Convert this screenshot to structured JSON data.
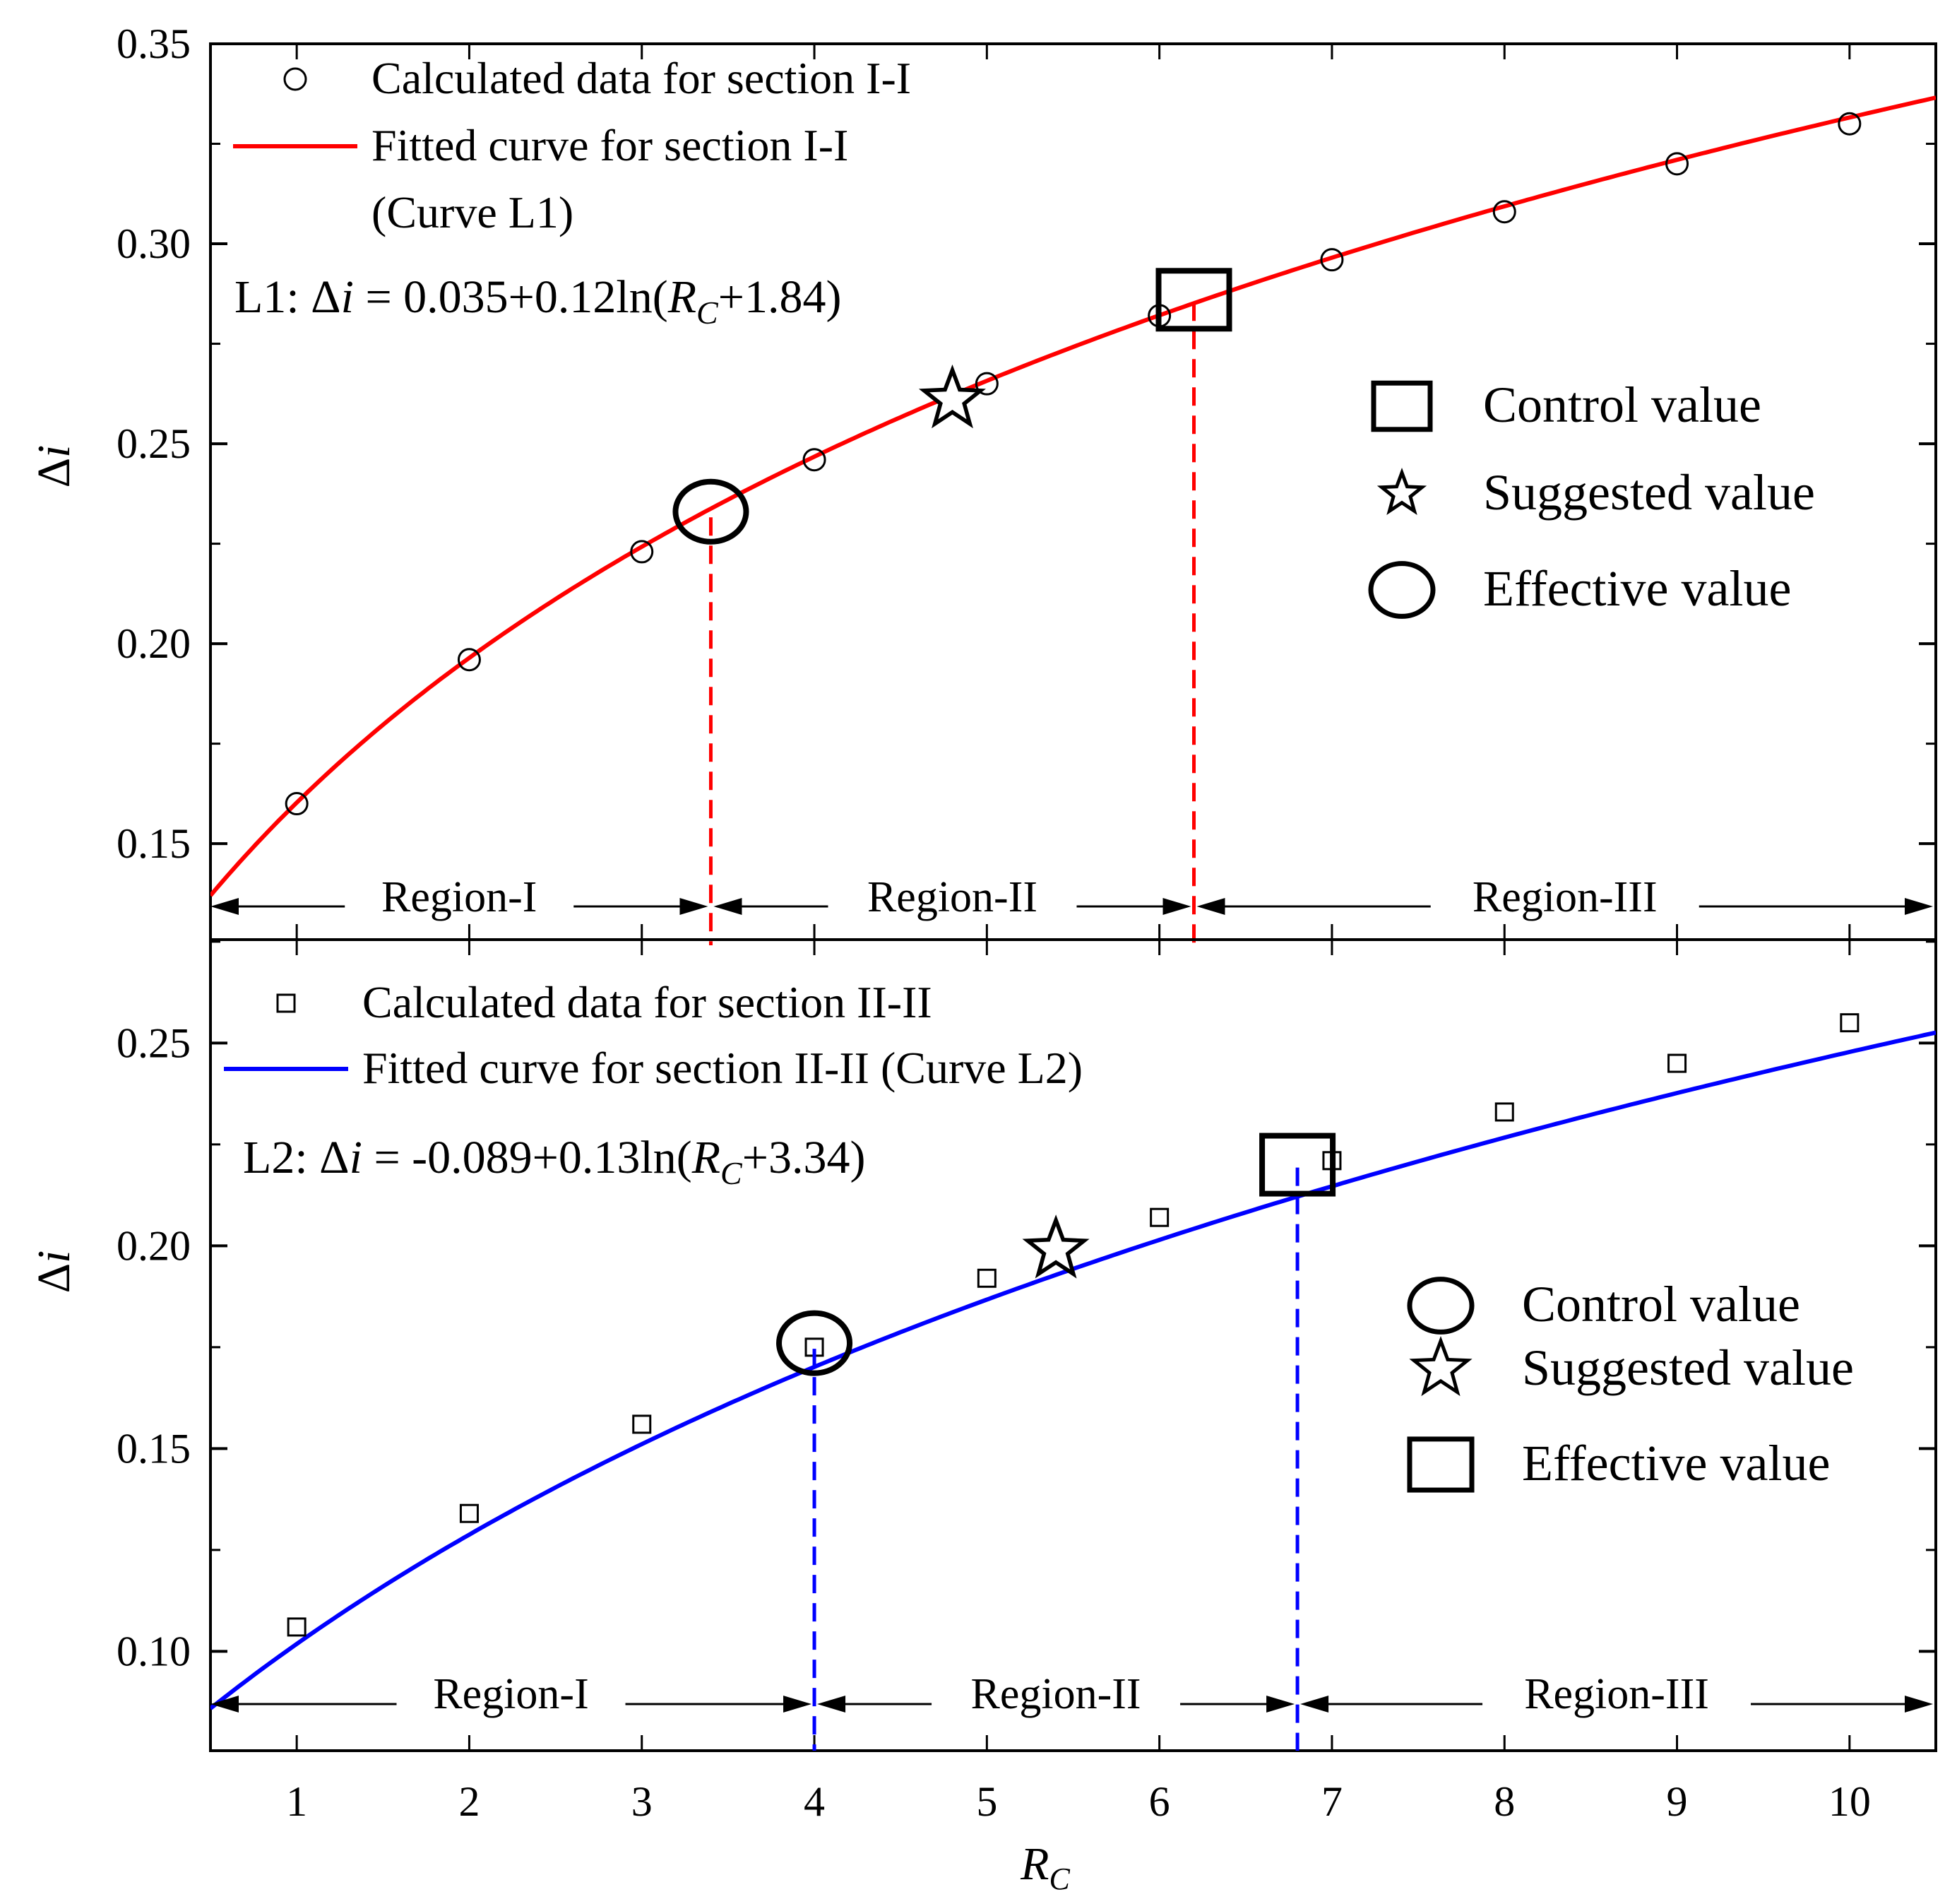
{
  "chart_data": [
    {
      "type": "scatter",
      "panel": "top",
      "ylabel": "Δi",
      "xlabel": "R_C",
      "xlim": [
        0.5,
        10.5
      ],
      "ylim": [
        0.126,
        0.35
      ],
      "yticks": [
        "0.15",
        "0.20",
        "0.25",
        "0.30",
        "0.35"
      ],
      "ytick_values": [
        0.15,
        0.2,
        0.25,
        0.3,
        0.35
      ],
      "color": "#ff0000",
      "series": [
        {
          "name": "Calculated data for section I-I",
          "marker": "circle",
          "x": [
            1,
            2,
            3,
            4,
            5,
            6,
            7,
            8,
            9,
            10
          ],
          "y": [
            0.16,
            0.196,
            0.223,
            0.246,
            0.265,
            0.282,
            0.296,
            0.308,
            0.32,
            0.33
          ]
        },
        {
          "name": "Fitted curve for section I-I",
          "name_line2": "(Curve L1)",
          "fit": {
            "a": 0.035,
            "b": 0.12,
            "c": 1.84
          }
        }
      ],
      "equation": {
        "prefix": "L1: ",
        "delta": "Δ",
        "var": "i",
        "mid": " = 0.035+0.12ln(",
        "r": "R",
        "sub": "C",
        "suffix": "+1.84)"
      },
      "highlights": [
        {
          "kind": "effective",
          "shape": "circle",
          "x": 3.4,
          "y": 0.233
        },
        {
          "kind": "suggested",
          "shape": "star",
          "x": 4.8,
          "y": 0.261
        },
        {
          "kind": "control",
          "shape": "square",
          "x": 6.2,
          "y": 0.286
        }
      ],
      "dashed_lines_x": [
        3.4,
        6.2
      ],
      "regions": [
        {
          "label": "Region-I",
          "from": 0.5,
          "to": 3.4
        },
        {
          "label": "Region-II",
          "from": 3.4,
          "to": 6.2
        },
        {
          "label": "Region-III",
          "from": 6.2,
          "to": 10.5
        }
      ],
      "legend2": [
        {
          "shape": "square",
          "label": "Control value"
        },
        {
          "shape": "star",
          "label": "Suggested value"
        },
        {
          "shape": "circle",
          "label": "Effective value"
        }
      ]
    },
    {
      "type": "scatter",
      "panel": "bottom",
      "ylabel": "Δi",
      "xlabel": "R_C",
      "xlim": [
        0.5,
        10.5
      ],
      "ylim": [
        0.0755,
        0.2755
      ],
      "yticks": [
        "0.10",
        "0.15",
        "0.20",
        "0.25"
      ],
      "ytick_values": [
        0.1,
        0.15,
        0.2,
        0.25
      ],
      "xticks": [
        "1",
        "2",
        "3",
        "4",
        "5",
        "6",
        "7",
        "8",
        "9",
        "10"
      ],
      "xtick_values": [
        1,
        2,
        3,
        4,
        5,
        6,
        7,
        8,
        9,
        10
      ],
      "color": "#0000ff",
      "series": [
        {
          "name": "Calculated data for section II-II",
          "marker": "square",
          "x": [
            1,
            2,
            3,
            4,
            5,
            6,
            7,
            8,
            9,
            10
          ],
          "y": [
            0.106,
            0.134,
            0.156,
            0.175,
            0.192,
            0.207,
            0.221,
            0.233,
            0.245,
            0.255
          ]
        },
        {
          "name": "Fitted curve for section II-II (Curve L2)",
          "fit": {
            "a": -0.089,
            "b": 0.13,
            "c": 3.34
          }
        }
      ],
      "equation": {
        "prefix": "L2: ",
        "delta": "Δ",
        "var": "i",
        "mid": " = -0.089+0.13ln(",
        "r": "R",
        "sub": "C",
        "suffix": "+3.34)"
      },
      "highlights": [
        {
          "kind": "control",
          "shape": "circle",
          "x": 4.0,
          "y": 0.176
        },
        {
          "kind": "suggested",
          "shape": "star",
          "x": 5.4,
          "y": 0.199
        },
        {
          "kind": "effective",
          "shape": "square",
          "x": 6.8,
          "y": 0.22
        }
      ],
      "dashed_lines_x": [
        4.0,
        6.8
      ],
      "regions": [
        {
          "label": "Region-I",
          "from": 0.5,
          "to": 4.0
        },
        {
          "label": "Region-II",
          "from": 4.0,
          "to": 6.8
        },
        {
          "label": "Region-III",
          "from": 6.8,
          "to": 10.5
        }
      ],
      "legend2": [
        {
          "shape": "circle",
          "label": "Control value"
        },
        {
          "shape": "star",
          "label": "Suggested value"
        },
        {
          "shape": "square",
          "label": "Effective value"
        }
      ]
    }
  ],
  "axis_labels": {
    "y_delta": "Δ",
    "y_var": "i",
    "x_main": "R",
    "x_sub": "C"
  }
}
